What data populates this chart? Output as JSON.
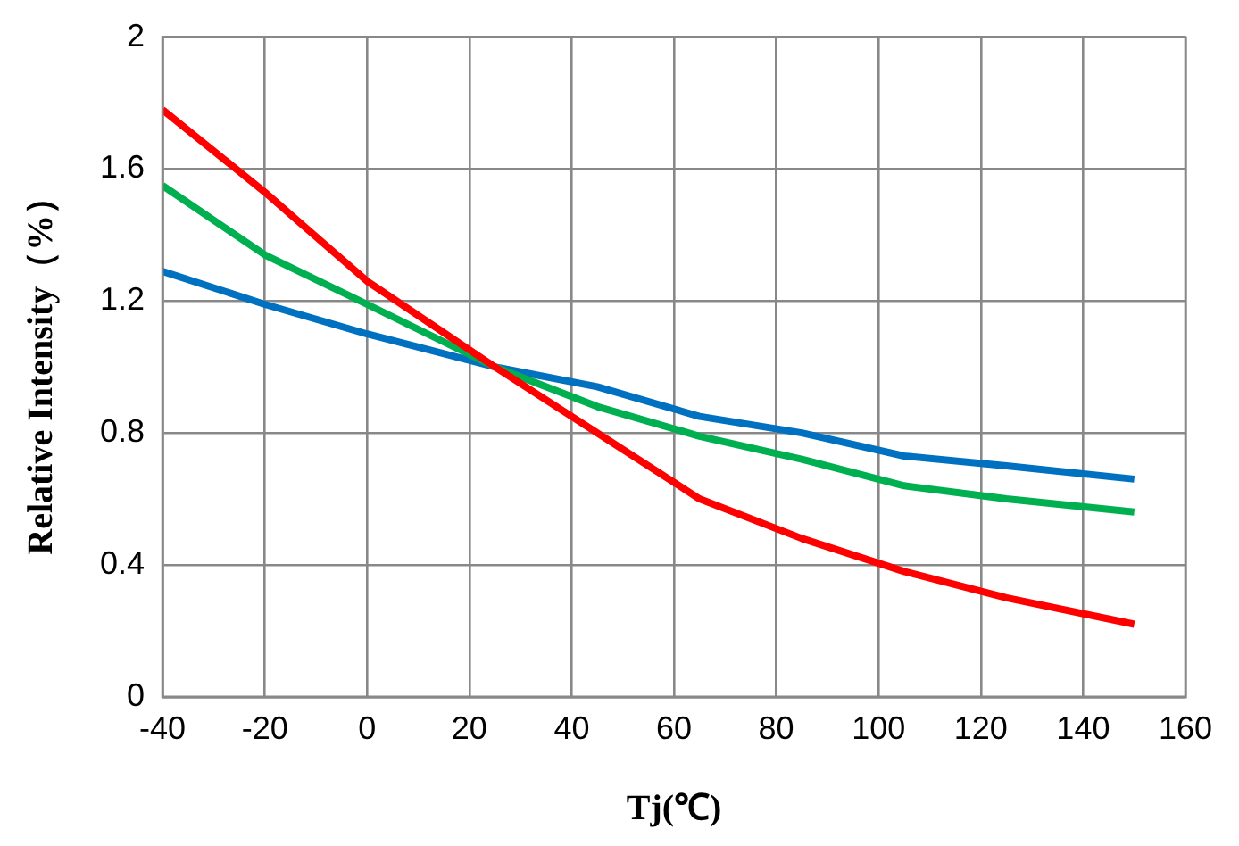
{
  "chart_data": {
    "type": "line",
    "xlabel": "Tj(℃)",
    "ylabel": "Relative Intensity（%）",
    "x": [
      -40,
      -20,
      0,
      25,
      45,
      65,
      85,
      105,
      125,
      150
    ],
    "xlim": [
      -40,
      160
    ],
    "xticks": [
      -40,
      -20,
      0,
      20,
      40,
      60,
      80,
      100,
      120,
      140,
      160
    ],
    "ylim": [
      0,
      2
    ],
    "yticks": [
      0,
      0.4,
      0.8,
      1.2,
      1.6,
      2
    ],
    "grid": true,
    "legend": false,
    "marker": "none",
    "line_style": "solid",
    "series": [
      {
        "color": "#ff0000",
        "values": [
          1.78,
          1.53,
          1.26,
          1.0,
          0.8,
          0.6,
          0.48,
          0.38,
          0.3,
          0.22
        ]
      },
      {
        "color": "#00b050",
        "values": [
          1.55,
          1.34,
          1.19,
          1.0,
          0.88,
          0.79,
          0.72,
          0.64,
          0.6,
          0.56
        ]
      },
      {
        "color": "#0070c0",
        "values": [
          1.29,
          1.19,
          1.1,
          1.0,
          0.94,
          0.85,
          0.8,
          0.73,
          0.7,
          0.66
        ]
      }
    ]
  }
}
